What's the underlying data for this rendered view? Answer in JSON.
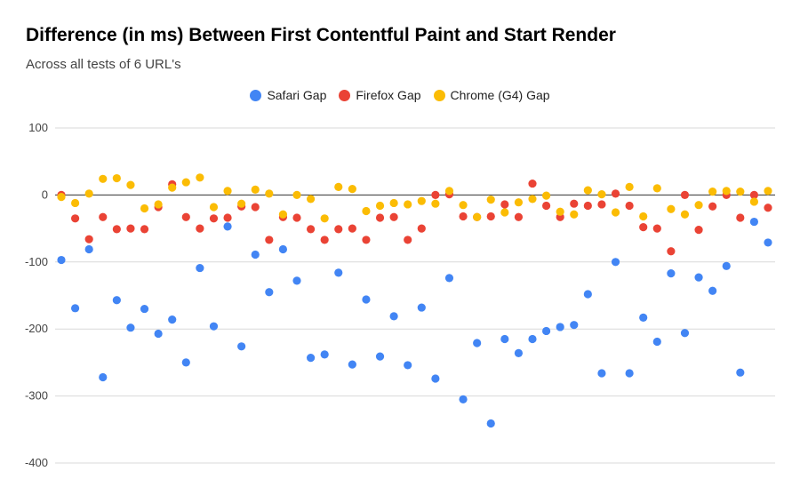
{
  "chart_data": {
    "type": "scatter",
    "title": "Difference (in ms) Between First Contentful Paint and Start Render",
    "subtitle": "Across all tests of 6 URL's",
    "xlabel": "",
    "ylabel": "",
    "ylim": [
      -400,
      100
    ],
    "yticks": [
      100,
      0,
      -100,
      -200,
      -300,
      -400
    ],
    "grid": true,
    "legend": "top",
    "point_count": 52,
    "series": [
      {
        "name": "Safari Gap",
        "color": "#4285F4",
        "values": [
          -97,
          -169,
          -81,
          -272,
          -157,
          -198,
          -170,
          -207,
          -186,
          -250,
          -109,
          -196,
          -47,
          -226,
          -89,
          -145,
          -81,
          -128,
          -243,
          -238,
          -116,
          -253,
          -156,
          -241,
          -181,
          -254,
          -168,
          -274,
          -124,
          -305,
          -221,
          -341,
          -215,
          -236,
          -215,
          -203,
          -197,
          -194,
          -148,
          -266,
          -100,
          -266,
          -183,
          -219,
          -117,
          -206,
          -123,
          -143,
          -106,
          -265,
          -40,
          -71
        ]
      },
      {
        "name": "Firefox Gap",
        "color": "#EA4335",
        "values": [
          0,
          -35,
          -66,
          -33,
          -51,
          -50,
          -51,
          -18,
          16,
          -33,
          -50,
          -35,
          -34,
          -17,
          -18,
          -67,
          -33,
          -34,
          -51,
          -67,
          -51,
          -50,
          -67,
          -34,
          -33,
          -67,
          -50,
          0,
          1,
          -32,
          -33,
          -32,
          -14,
          -33,
          17,
          -16,
          -33,
          -13,
          -16,
          -14,
          2,
          -16,
          -48,
          -50,
          -84,
          0,
          -52,
          -17,
          0,
          -34,
          0,
          -19
        ]
      },
      {
        "name": "Chrome (G4) Gap",
        "color": "#FBBC04",
        "values": [
          -3,
          -12,
          2,
          24,
          25,
          15,
          -20,
          -14,
          11,
          19,
          26,
          -18,
          6,
          -13,
          8,
          2,
          -29,
          0,
          -6,
          -35,
          12,
          9,
          -24,
          -16,
          -12,
          -14,
          -9,
          -13,
          6,
          -15,
          -33,
          -7,
          -26,
          -11,
          -6,
          -1,
          -25,
          -29,
          7,
          1,
          -26,
          12,
          -32,
          10,
          -21,
          -29,
          -15,
          5,
          6,
          5,
          -10,
          6
        ]
      }
    ]
  }
}
